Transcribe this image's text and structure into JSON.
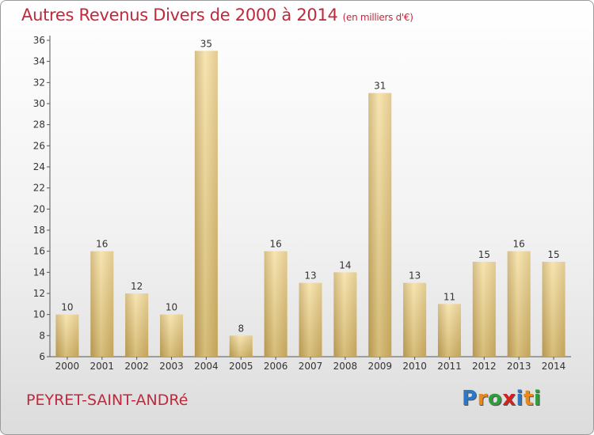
{
  "chart_data": {
    "type": "bar",
    "title": "Autres Revenus Divers de 2000 à 2014",
    "subtitle": "(en milliers d'€)",
    "categories": [
      "2000",
      "2001",
      "2002",
      "2003",
      "2004",
      "2005",
      "2006",
      "2007",
      "2008",
      "2009",
      "2010",
      "2011",
      "2012",
      "2013",
      "2014"
    ],
    "values": [
      10,
      16,
      12,
      10,
      35,
      8,
      16,
      13,
      14,
      31,
      13,
      11,
      15,
      16,
      15
    ],
    "ylim": [
      6,
      36
    ],
    "yticks": [
      6,
      8,
      10,
      12,
      14,
      16,
      18,
      20,
      22,
      24,
      26,
      28,
      30,
      32,
      34,
      36
    ],
    "grid": false,
    "legend": "none",
    "bar_color": "#e6c77a"
  },
  "footer": {
    "location": "PEYRET-SAINT-ANDRé",
    "brand_letters": [
      "P",
      "r",
      "o",
      "x",
      "i",
      "t",
      "i"
    ],
    "brand_colors": [
      "#2b78c6",
      "#e8891c",
      "#2f9e3a",
      "#d4231f",
      "#2b78c6",
      "#e8891c",
      "#2f9e3a"
    ]
  }
}
